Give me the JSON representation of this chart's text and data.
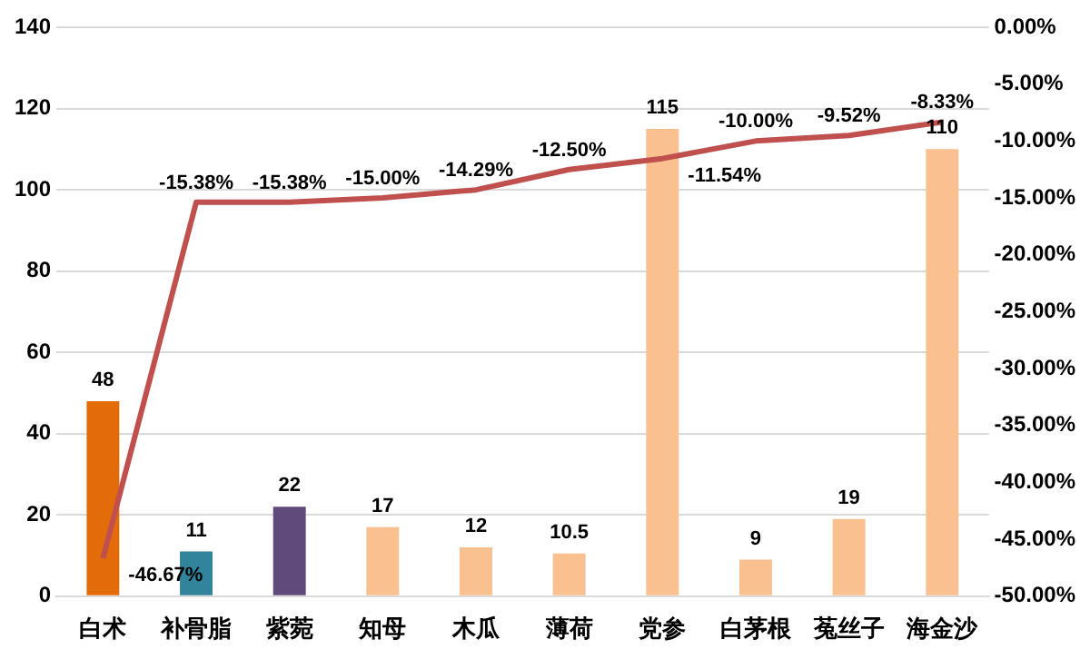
{
  "chart_data": {
    "type": "bar",
    "categories": [
      "白术",
      "补骨脂",
      "紫菀",
      "知母",
      "木瓜",
      "薄荷",
      "党参",
      "白茅根",
      "菟丝子",
      "海金沙"
    ],
    "series": [
      {
        "colors": [
          "#e36c0a",
          "#31849b",
          "#604a7b",
          "#fac090",
          "#fac090",
          "#fac090",
          "#fac090",
          "#fac090",
          "#fac090",
          "#fac090"
        ],
        "values": [
          48,
          11,
          22,
          17,
          12,
          10.5,
          115,
          9,
          19,
          110
        ],
        "value_labels": [
          "48",
          "11",
          "22",
          "17",
          "12",
          "10.5",
          "115",
          "9",
          "19",
          "110"
        ]
      },
      {
        "type": "line",
        "axis": "y2",
        "color": "#c0504d",
        "values": [
          -46.67,
          -15.38,
          -15.38,
          -15.0,
          -14.29,
          -12.5,
          -11.54,
          -10.0,
          -9.52,
          -8.33
        ],
        "value_labels": [
          "-46.67%",
          "-15.38%",
          "-15.38%",
          "-15.00%",
          "-14.29%",
          "-12.50%",
          "-11.54%",
          "-10.00%",
          "-9.52%",
          "-8.33%"
        ]
      }
    ],
    "ylim": [
      0,
      140
    ],
    "yticks": [
      0,
      20,
      40,
      60,
      80,
      100,
      120,
      140
    ],
    "y2lim": [
      -50,
      0
    ],
    "y2ticks": [
      {
        "value": -50,
        "label": "-50.00%"
      },
      {
        "value": -45,
        "label": "-45.00%"
      },
      {
        "value": -40,
        "label": "-40.00%"
      },
      {
        "value": -35,
        "label": "-35.00%"
      },
      {
        "value": -30,
        "label": "-30.00%"
      },
      {
        "value": -25,
        "label": "-25.00%"
      },
      {
        "value": -20,
        "label": "-20.00%"
      },
      {
        "value": -15,
        "label": "-15.00%"
      },
      {
        "value": -10,
        "label": "-10.00%"
      },
      {
        "value": -5,
        "label": "-5.00%"
      },
      {
        "value": 0,
        "label": "0.00%"
      }
    ],
    "grid": "y",
    "legend": false,
    "marker": "none",
    "line_style": "solid"
  }
}
